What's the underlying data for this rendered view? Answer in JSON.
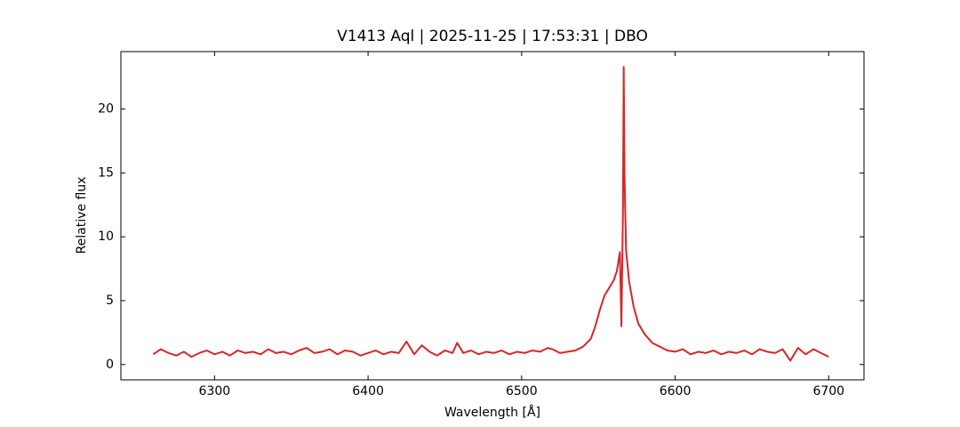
{
  "chart_data": {
    "type": "line",
    "title": "V1413 Aql | 2025-11-25 | 17:53:31 | DBO",
    "xlabel": "Wavelength [Å]",
    "ylabel": "Relative flux",
    "xlim": [
      6239,
      6723
    ],
    "ylim": [
      -1.2,
      24.5
    ],
    "xticks": [
      6300,
      6400,
      6500,
      6600,
      6700
    ],
    "yticks": [
      0,
      5,
      10,
      15,
      20
    ],
    "x": [
      6260,
      6265,
      6270,
      6275,
      6280,
      6285,
      6290,
      6295,
      6300,
      6305,
      6310,
      6315,
      6320,
      6325,
      6330,
      6335,
      6340,
      6345,
      6350,
      6355,
      6360,
      6365,
      6370,
      6375,
      6380,
      6385,
      6390,
      6395,
      6400,
      6405,
      6410,
      6415,
      6420,
      6425,
      6430,
      6435,
      6440,
      6445,
      6450,
      6455,
      6458,
      6462,
      6467,
      6472,
      6477,
      6482,
      6487,
      6492,
      6497,
      6502,
      6507,
      6512,
      6517,
      6520,
      6525,
      6530,
      6535,
      6540,
      6545,
      6548,
      6551,
      6554,
      6557,
      6560,
      6562,
      6564,
      6565,
      6566,
      6566.5,
      6567,
      6568,
      6570,
      6573,
      6576,
      6580,
      6585,
      6590,
      6595,
      6600,
      6605,
      6610,
      6615,
      6620,
      6625,
      6630,
      6635,
      6640,
      6645,
      6650,
      6655,
      6660,
      6665,
      6670,
      6675,
      6680,
      6685,
      6690,
      6695,
      6700
    ],
    "series": [
      {
        "name": "flux",
        "color": "#d62728",
        "values": [
          0.8,
          1.2,
          0.9,
          0.7,
          1.0,
          0.6,
          0.9,
          1.1,
          0.8,
          1.0,
          0.7,
          1.1,
          0.9,
          1.0,
          0.8,
          1.2,
          0.9,
          1.0,
          0.8,
          1.1,
          1.3,
          0.9,
          1.0,
          1.2,
          0.8,
          1.1,
          1.0,
          0.7,
          0.9,
          1.1,
          0.8,
          1.0,
          0.9,
          1.8,
          0.8,
          1.5,
          1.0,
          0.7,
          1.1,
          0.9,
          1.7,
          0.9,
          1.1,
          0.8,
          1.0,
          0.9,
          1.1,
          0.8,
          1.0,
          0.9,
          1.1,
          1.0,
          1.3,
          1.2,
          0.9,
          1.0,
          1.1,
          1.4,
          2.0,
          3.0,
          4.3,
          5.4,
          6.0,
          6.6,
          7.3,
          8.8,
          3.0,
          12.0,
          23.3,
          15.0,
          9.0,
          6.5,
          4.5,
          3.2,
          2.4,
          1.7,
          1.4,
          1.1,
          1.0,
          1.2,
          0.8,
          1.0,
          0.9,
          1.1,
          0.8,
          1.0,
          0.9,
          1.1,
          0.8,
          1.2,
          1.0,
          0.9,
          1.2,
          0.3,
          1.3,
          0.8,
          1.2,
          0.9,
          0.6
        ]
      }
    ]
  }
}
